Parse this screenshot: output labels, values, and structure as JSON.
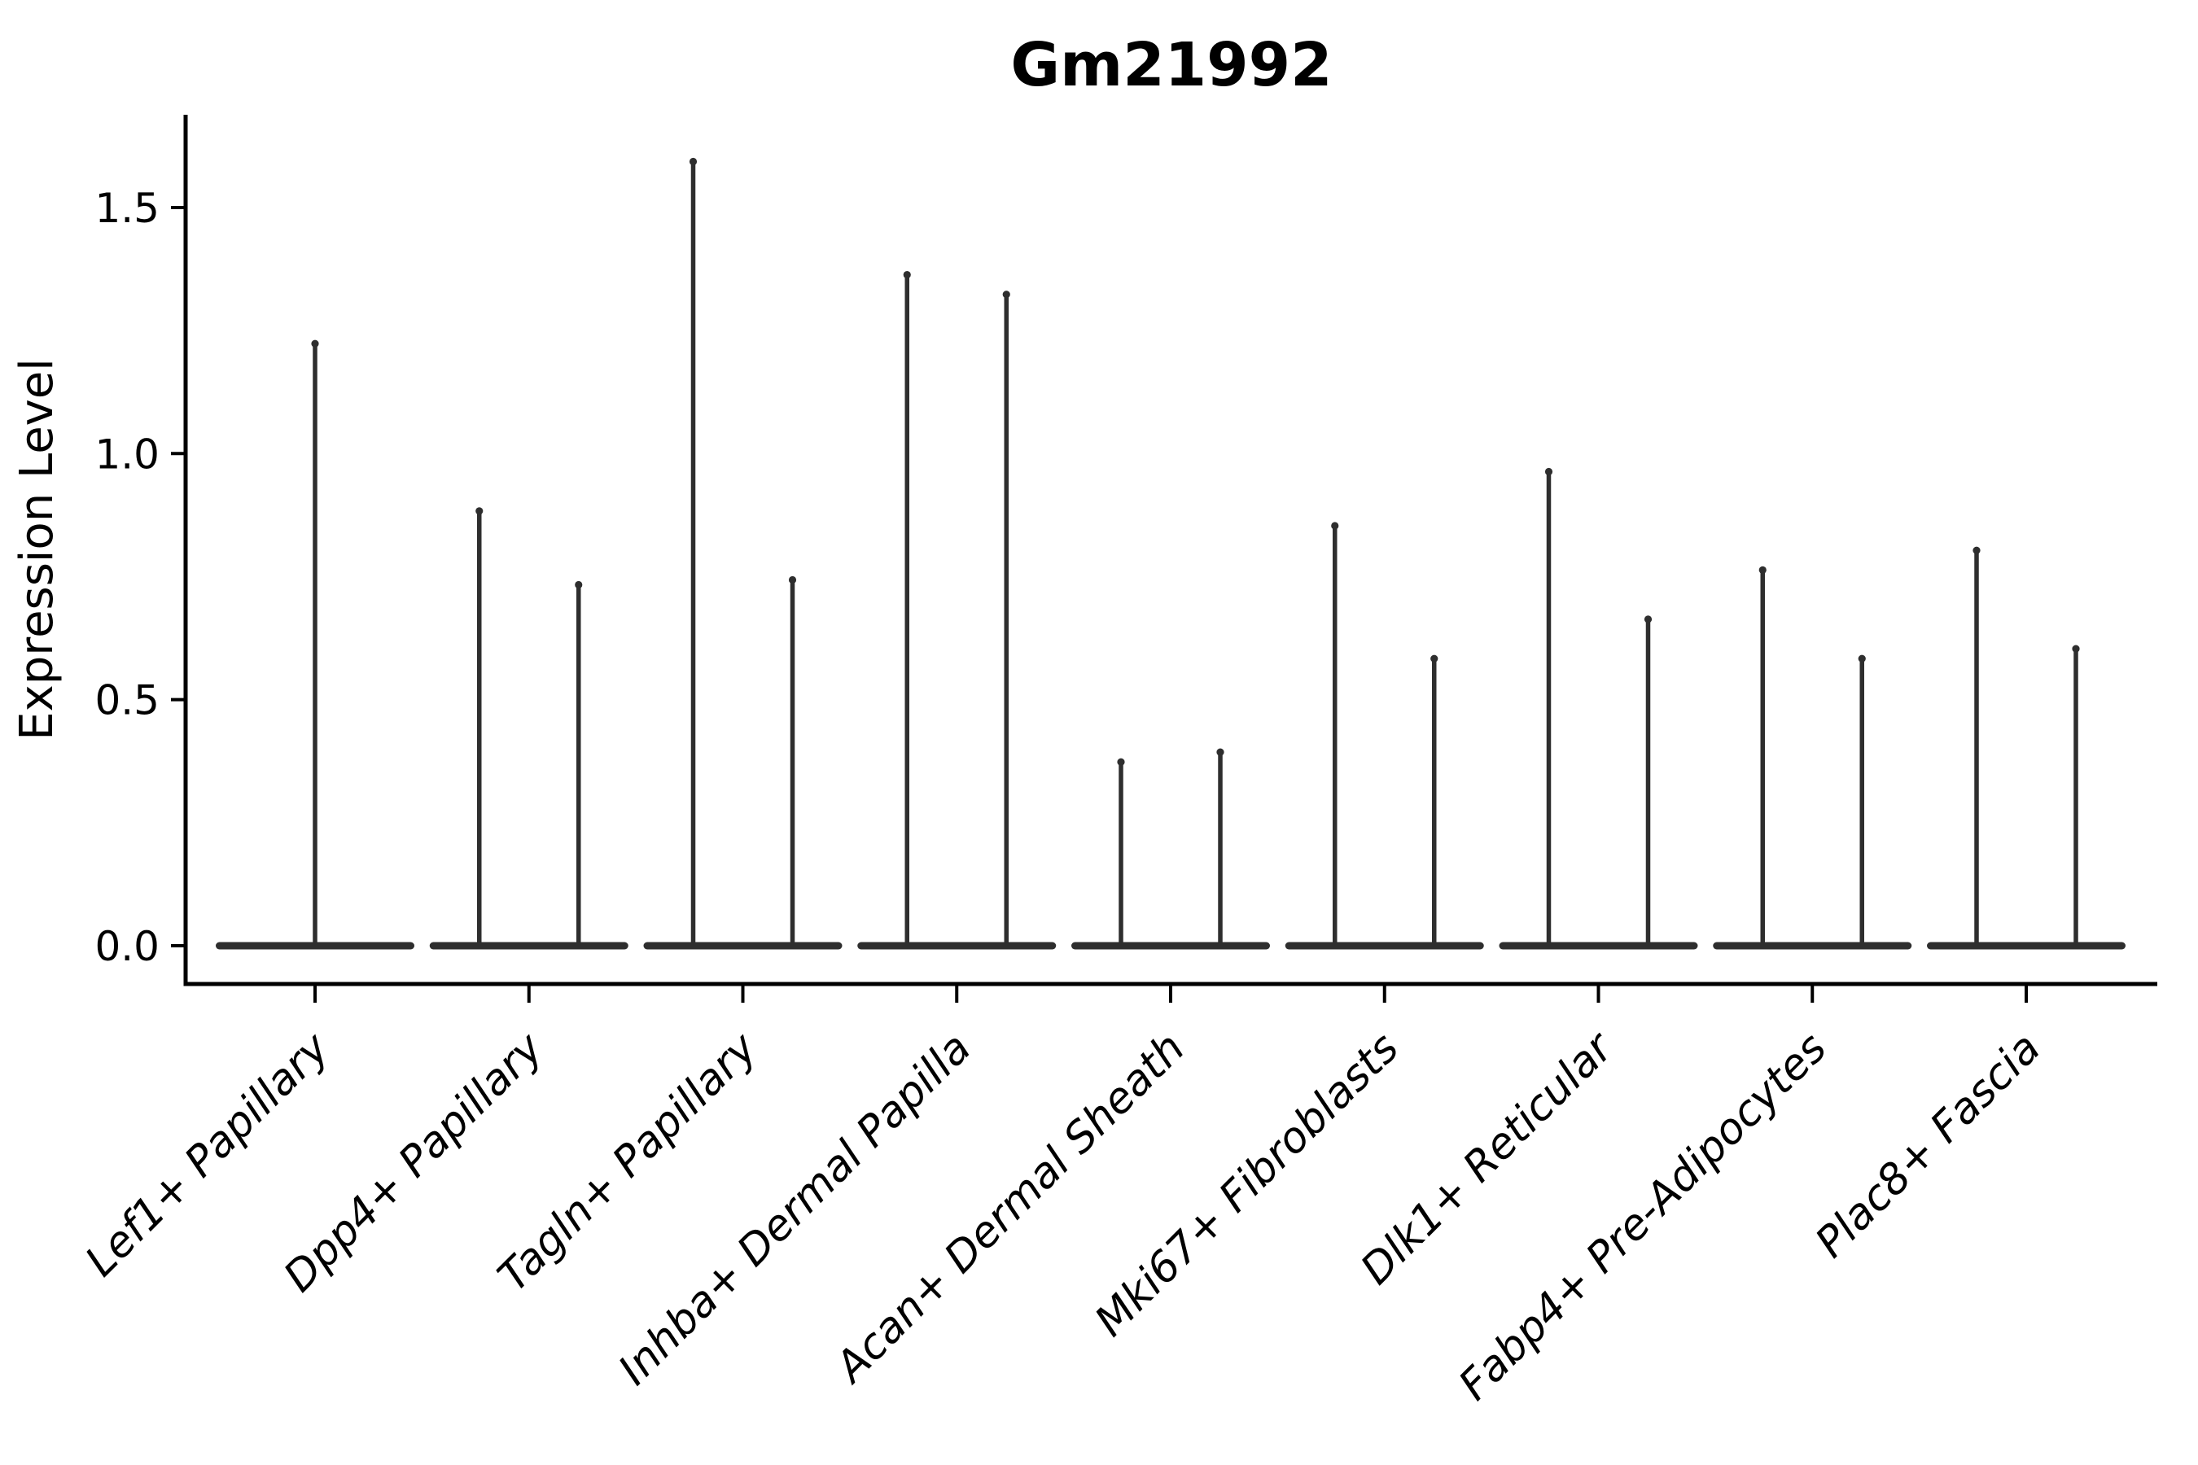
{
  "figure": {
    "background": "#ffffff",
    "ink_color": "#2e2e2e",
    "axis_color": "#000000"
  },
  "chart_data": {
    "type": "violin",
    "title": "Gm21992",
    "xlabel": "",
    "ylabel": "Expression Level",
    "ylim": [
      -0.08,
      1.69
    ],
    "yticks": [
      0.0,
      0.5,
      1.0,
      1.5
    ],
    "ytick_labels": [
      "0.0",
      "0.5",
      "1.0",
      "1.5"
    ],
    "grid": false,
    "legend": false,
    "categories": [
      "Lef1+ Papillary",
      "Dpp4+ Papillary",
      "Tagln+ Papillary",
      "Inhba+ Dermal Papilla",
      "Acan+ Dermal Sheath",
      "Mki67+ Fibroblasts",
      "Dlk1+ Reticular",
      "Fabp4+ Pre-Adipocytes",
      "Plac8+ Fascia"
    ],
    "baseline_value": 0.0,
    "series": [
      {
        "category": "Lef1+ Papillary",
        "spikes": [
          1.23
        ]
      },
      {
        "category": "Dpp4+ Papillary",
        "spikes": [
          0.89,
          0.74
        ]
      },
      {
        "category": "Tagln+ Papillary",
        "spikes": [
          1.6,
          0.75
        ]
      },
      {
        "category": "Inhba+ Dermal Papilla",
        "spikes": [
          1.37,
          1.33
        ]
      },
      {
        "category": "Acan+ Dermal Sheath",
        "spikes": [
          0.38,
          0.4
        ]
      },
      {
        "category": "Mki67+ Fibroblasts",
        "spikes": [
          0.86,
          0.59
        ]
      },
      {
        "category": "Dlk1+ Reticular",
        "spikes": [
          0.97,
          0.67
        ]
      },
      {
        "category": "Fabp4+ Pre-Adipocytes",
        "spikes": [
          0.77,
          0.59
        ]
      },
      {
        "category": "Plac8+ Fascia",
        "spikes": [
          0.81,
          0.61
        ]
      }
    ]
  }
}
